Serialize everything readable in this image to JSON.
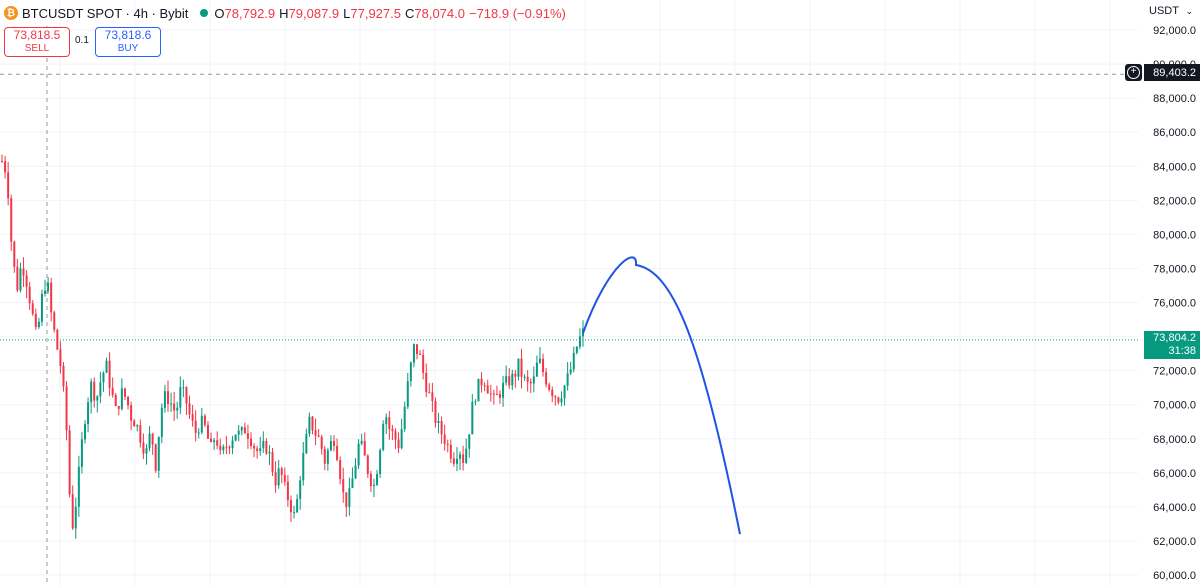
{
  "header": {
    "symbol_icon": "bitcoin-icon",
    "symbol": "BTCUSDT SPOT · 4h · Bybit",
    "ohlc": [
      {
        "k": "O",
        "v": "78,792.9"
      },
      {
        "k": "H",
        "v": "79,087.9"
      },
      {
        "k": "L",
        "v": "77,927.5"
      },
      {
        "k": "C",
        "v": "78,074.0"
      }
    ],
    "change": "−718.9 (−0.91%)"
  },
  "trade": {
    "sell_price": "73,818.5",
    "sell_label": "SELL",
    "qty": "0.1",
    "buy_price": "73,818.6",
    "buy_label": "BUY"
  },
  "currency": "USDT",
  "crosshair": {
    "price": 89403.2,
    "label": "89,403.2"
  },
  "last_price": {
    "price": 73804.2,
    "label": "73,804.2",
    "countdown": "31:38"
  },
  "colors": {
    "up": "#089981",
    "down": "#f23645",
    "projection": "#1e53e5",
    "grid": "#f0f3fa"
  },
  "chart_data": {
    "type": "candlestick",
    "y_axis": {
      "min": 60000,
      "max": 92000,
      "ticks": [
        60000,
        62000,
        64000,
        66000,
        68000,
        70000,
        72000,
        74000,
        76000,
        78000,
        80000,
        82000,
        84000,
        86000,
        88000,
        90000,
        92000
      ],
      "tick_labels": [
        "60,000.0",
        "62,000.0",
        "64,000.0",
        "66,000.0",
        "68,000.0",
        "70,000.0",
        "72,000.0",
        "74,000.0",
        "76,000.0",
        "78,000.0",
        "80,000.0",
        "82,000.0",
        "84,000.0",
        "86,000.0",
        "88,000.0",
        "90,000.0",
        "92,000.0"
      ]
    },
    "close_path": [
      84300,
      83600,
      79000,
      76800,
      78400,
      77200,
      75500,
      73800,
      76200,
      77500,
      75100,
      73500,
      72000,
      68500,
      62500,
      64500,
      67500,
      70000,
      71200,
      70300,
      71600,
      72300,
      70800,
      69500,
      70700,
      70400,
      69300,
      68900,
      68000,
      67100,
      68500,
      66400,
      69700,
      70600,
      70100,
      69500,
      70900,
      70300,
      69100,
      68400,
      69000,
      68600,
      67300,
      68300,
      66900,
      67500,
      67900,
      68400,
      68200,
      68600,
      68100,
      67400,
      67100,
      67700,
      66900,
      65500,
      66200,
      65000,
      64200,
      63300,
      65800,
      67500,
      69100,
      68400,
      67900,
      66700,
      67600,
      68100,
      66200,
      64100,
      64700,
      66300,
      67900,
      66900,
      65800,
      65200,
      67300,
      69800,
      68600,
      68100,
      67600,
      69700,
      71700,
      73400,
      73000,
      71600,
      70600,
      69400,
      68600,
      68100,
      67400,
      66900,
      67500,
      66700,
      68400,
      70400,
      71100,
      71600,
      70900,
      70200,
      70600,
      71100,
      71400,
      71600,
      72300,
      71500,
      71100,
      71300,
      72700,
      71900,
      71200,
      70700,
      70400,
      70900,
      71600,
      72500,
      73700,
      74200
    ],
    "projection": {
      "description_points": [
        [
          74200,
          0
        ],
        [
          78200,
          0.42
        ],
        [
          62400,
          1
        ]
      ]
    }
  }
}
